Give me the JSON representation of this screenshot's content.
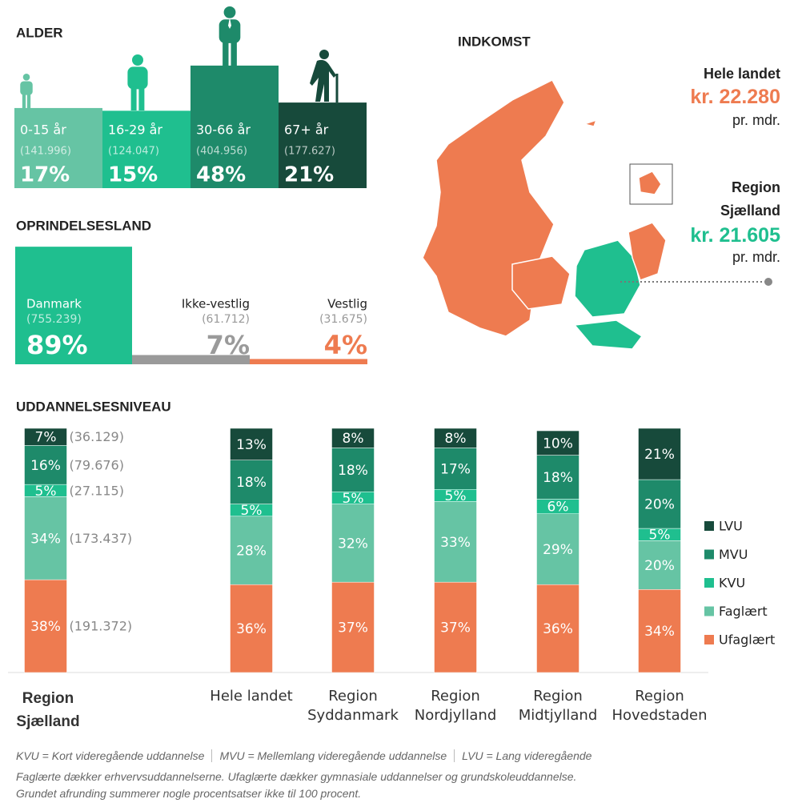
{
  "alder": {
    "title": "ALDER",
    "categories": [
      "0-15 år",
      "16-29 år",
      "30-66 år",
      "67+ år"
    ],
    "count_labels": [
      "(141.996)",
      "(124.047)",
      "(404.956)",
      "(177.627)"
    ],
    "values": [
      17,
      15,
      48,
      21
    ],
    "value_labels": [
      "17%",
      "15%",
      "48%",
      "21%"
    ],
    "colors": [
      "#66c4a4",
      "#1fbf8f",
      "#1e8a6a",
      "#174a3b"
    ]
  },
  "oprindelsesland": {
    "title": "OPRINDELSESLAND",
    "categories": [
      "Danmark",
      "Ikke-vestlig",
      "Vestlig"
    ],
    "count_labels": [
      "(755.239)",
      "(61.712)",
      "(31.675)"
    ],
    "values": [
      89,
      7,
      4
    ],
    "value_labels": [
      "89%",
      "7%",
      "4%"
    ],
    "colors": [
      "#1fbf8f",
      "#9a9a9a",
      "#ee7b50"
    ]
  },
  "indkomst": {
    "title": "INDKOMST",
    "items": [
      {
        "name": "Hele landet",
        "amount": "kr. 22.280",
        "unit": "pr. mdr.",
        "color": "#ee7b50"
      },
      {
        "name": "Region Sjælland",
        "amount": "kr. 21.605",
        "unit": "pr. mdr.",
        "color": "#1fbf8f"
      }
    ]
  },
  "chart_data": {
    "type": "stacked_bar",
    "title": "UDDANNELSESNIVEAU",
    "categories": [
      "Region Sjælland",
      "Hele landet",
      "Region Syddanmark",
      "Region Nordjylland",
      "Region Midtjylland",
      "Region Hovedstaden"
    ],
    "series": [
      {
        "name": "Ufaglært",
        "color": "#ee7b50",
        "values": [
          38,
          36,
          37,
          37,
          36,
          34
        ],
        "value_labels": [
          "38%",
          "36%",
          "37%",
          "37%",
          "36%",
          "34%"
        ],
        "count_label": "(191.372)"
      },
      {
        "name": "Faglært",
        "color": "#66c4a4",
        "values": [
          34,
          28,
          32,
          33,
          29,
          20
        ],
        "value_labels": [
          "34%",
          "28%",
          "32%",
          "33%",
          "29%",
          "20%"
        ],
        "count_label": "(173.437)"
      },
      {
        "name": "KVU",
        "color": "#1fbf8f",
        "values": [
          5,
          5,
          5,
          5,
          6,
          5
        ],
        "value_labels": [
          "5%",
          "5%",
          "5%",
          "5%",
          "6%",
          "5%"
        ],
        "count_label": "(27.115)"
      },
      {
        "name": "MVU",
        "color": "#1e8a6a",
        "values": [
          16,
          18,
          18,
          17,
          18,
          20
        ],
        "value_labels": [
          "16%",
          "18%",
          "18%",
          "17%",
          "18%",
          "20%"
        ],
        "count_label": "(79.676)"
      },
      {
        "name": "LVU",
        "color": "#174a3b",
        "values": [
          7,
          13,
          8,
          8,
          10,
          21
        ],
        "value_labels": [
          "7%",
          "13%",
          "8%",
          "8%",
          "10%",
          "21%"
        ],
        "count_label": "(36.129)"
      }
    ]
  },
  "notes": {
    "abbreviations": [
      "KVU = Kort videregående uddannelse",
      "MVU = Mellemlang videregående uddannelse",
      "LVU = Lang videregående"
    ],
    "lines": [
      "Faglærte dækker erhvervsuddannelserne. Ufaglærte dækker gymnasiale uddannelser og grundskoleuddannelse.",
      "Grundet afrunding summerer nogle procentsatser ikke til 100 procent."
    ]
  }
}
